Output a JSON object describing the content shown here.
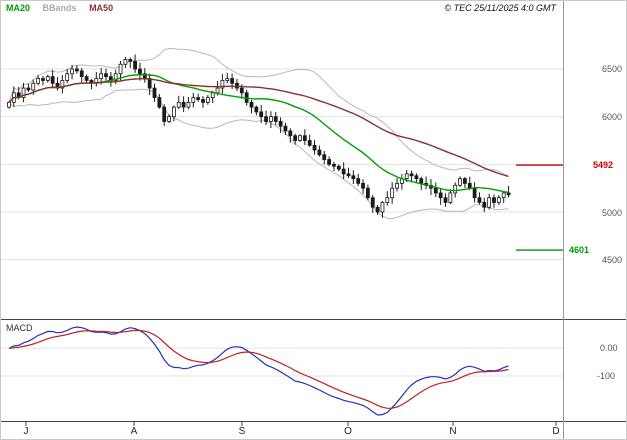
{
  "header": {
    "legend": [
      {
        "label": "MA20",
        "color": "#00a000"
      },
      {
        "label": "BBands",
        "color": "#aaaaaa"
      },
      {
        "label": "MA50",
        "color": "#8b3030"
      }
    ],
    "timestamp": "© TEC 25/11/2025 4:0 GMT"
  },
  "macd_panel": {
    "label": "MACD"
  },
  "chart_data": {
    "type": "candlestick",
    "title": "Daily price chart with Bollinger Bands, MA20, MA50 and MACD",
    "months": [
      "J",
      "A",
      "S",
      "O",
      "N",
      "D"
    ],
    "price_axis": {
      "labels": [
        {
          "text": "6500",
          "value": 6500
        },
        {
          "text": "6000",
          "value": 6000
        },
        {
          "text": "5000",
          "value": 5000
        },
        {
          "text": "4500",
          "value": 4500
        }
      ],
      "grid": [
        6500,
        6000,
        5500,
        5000,
        4500
      ],
      "ylim": [
        3950,
        7100
      ]
    },
    "levels": [
      {
        "value": 5492,
        "label": "5492",
        "color": "#cc0000"
      },
      {
        "value": 4601,
        "label": "4601",
        "color": "#009900"
      }
    ],
    "closes": [
      6150,
      6250,
      6200,
      6300,
      6280,
      6350,
      6400,
      6380,
      6420,
      6350,
      6300,
      6380,
      6450,
      6500,
      6480,
      6420,
      6380,
      6350,
      6400,
      6450,
      6420,
      6380,
      6450,
      6550,
      6600,
      6580,
      6500,
      6450,
      6400,
      6300,
      6200,
      6100,
      5950,
      6000,
      6100,
      6150,
      6100,
      6150,
      6200,
      6180,
      6150,
      6200,
      6250,
      6300,
      6380,
      6400,
      6350,
      6300,
      6250,
      6150,
      6100,
      6050,
      6000,
      5950,
      6000,
      5950,
      5900,
      5850,
      5800,
      5750,
      5800,
      5750,
      5700,
      5650,
      5600,
      5550,
      5500,
      5480,
      5450,
      5400,
      5380,
      5350,
      5300,
      5250,
      5150,
      5050,
      5000,
      5100,
      5150,
      5250,
      5300,
      5350,
      5400,
      5380,
      5350,
      5300,
      5280,
      5250,
      5200,
      5150,
      5100,
      5200,
      5280,
      5350,
      5300,
      5250,
      5150,
      5100,
      5050,
      5150,
      5100,
      5150,
      5200,
      5180
    ],
    "indicators": {
      "ma_fast": 20,
      "ma_slow": 50,
      "bbands_k": 2,
      "macd": [
        12,
        26,
        9
      ]
    },
    "macd_axis": {
      "labels": [
        {
          "text": "0.00",
          "value": 0
        },
        {
          "text": "-100",
          "value": -100
        }
      ]
    },
    "colors": {
      "candle": "#1a1a1a",
      "ma20": "#00a000",
      "ma50": "#8b3030",
      "bbands": "#b8b8b8",
      "macd_line": "#2233bb",
      "macd_signal": "#bb2222",
      "grid": "#e3e3e3",
      "axis": "#444444",
      "separator": "#999999"
    }
  }
}
